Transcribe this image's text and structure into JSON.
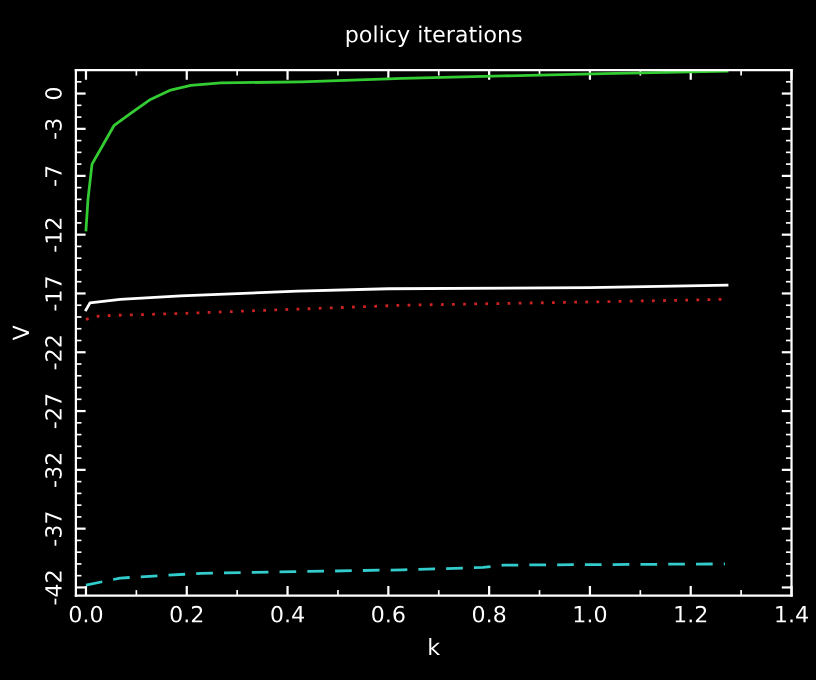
{
  "chart_data": {
    "type": "line",
    "title": "policy iterations",
    "xlabel": "k",
    "ylabel": "V",
    "xlim": [
      -0.02,
      1.4
    ],
    "xticks": [
      {
        "value": 0.0,
        "label": "0.0"
      },
      {
        "value": 0.2,
        "label": "0.2"
      },
      {
        "value": 0.4,
        "label": "0.4"
      },
      {
        "value": 0.6,
        "label": "0.6"
      },
      {
        "value": 0.8,
        "label": "0.8"
      },
      {
        "value": 1.0,
        "label": "1.0"
      },
      {
        "value": 1.2,
        "label": "1.2"
      },
      {
        "value": 1.4,
        "label": "1.4"
      }
    ],
    "ylim": [
      -42.7,
      2.0
    ],
    "yticks": [
      -42,
      -37,
      -32,
      -27,
      -22,
      -17,
      -12,
      -7,
      -3,
      0
    ],
    "grid": false,
    "marker": "none",
    "series": [
      {
        "color": "#33cc33",
        "line_style": "solid",
        "x": [
          0.0,
          0.004,
          0.012,
          0.028,
          0.056,
          0.088,
          0.128,
          0.168,
          0.208,
          0.268,
          0.428,
          0.628,
          0.828,
          1.028,
          1.272
        ],
        "values": [
          -11.6,
          -9.0,
          -6.0,
          -4.8,
          -2.7,
          -1.7,
          -0.5,
          0.3,
          0.7,
          0.9,
          1.0,
          1.3,
          1.5,
          1.7,
          1.9
        ]
      },
      {
        "color": "#ffffff",
        "line_style": "solid",
        "x": [
          0.0,
          0.008,
          0.068,
          0.188,
          0.42,
          0.6,
          1.0,
          1.272
        ],
        "values": [
          -18.4,
          -17.8,
          -17.5,
          -17.2,
          -16.8,
          -16.6,
          -16.5,
          -16.3
        ]
      },
      {
        "color": "#cc2222",
        "line_style": "dotted",
        "x": [
          0.0,
          0.028,
          0.188,
          0.628,
          1.028,
          1.268
        ],
        "values": [
          -19.2,
          -18.9,
          -18.7,
          -18.0,
          -17.7,
          -17.5
        ]
      },
      {
        "color": "#33cccc",
        "line_style": "dashed",
        "x": [
          0.0,
          0.068,
          0.228,
          0.628,
          0.788,
          0.828,
          1.268
        ],
        "values": [
          -41.8,
          -41.2,
          -40.8,
          -40.5,
          -40.3,
          -40.1,
          -40.0
        ]
      }
    ]
  }
}
